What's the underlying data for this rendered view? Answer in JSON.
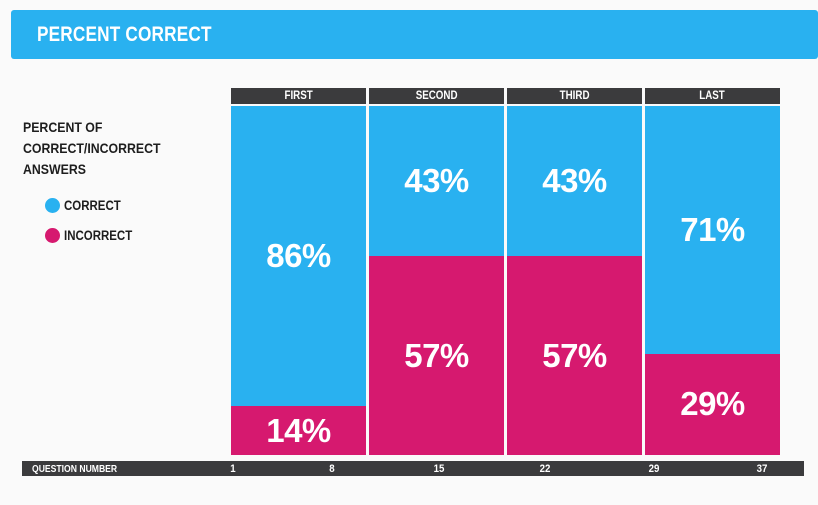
{
  "page": {
    "background": "#FAFAFA"
  },
  "header": {
    "title": "PERCENT CORRECT"
  },
  "legend": {
    "caption_lines": [
      "PERCENT OF",
      "CORRECT/INCORRECT",
      "ANSWERS"
    ]
  },
  "colors": {
    "accent_blue": "#29B1F0",
    "accent_pink": "#D6196F",
    "bar_dark": "#3B3B3D",
    "text_dark": "#1D1D1D",
    "text_light": "#FFFFFF",
    "page_bg": "#FAFAFA"
  },
  "chart_data": {
    "type": "bar",
    "subtype": "100%-stacked-columns",
    "title": "PERCENT CORRECT",
    "categories": [
      "FIRST",
      "SECOND",
      "THIRD",
      "LAST"
    ],
    "series": [
      {
        "name": "CORRECT",
        "color": "#29B1F0",
        "values": [
          86,
          43,
          43,
          71
        ]
      },
      {
        "name": "INCORRECT",
        "color": "#D6196F",
        "values": [
          14,
          57,
          57,
          29
        ]
      }
    ],
    "value_suffix": "%",
    "ylabel": "PERCENT OF CORRECT/INCORRECT ANSWERS",
    "xlabel": "QUESTION NUMBER",
    "x_ticks": [
      "1",
      "8",
      "15",
      "22",
      "29",
      "37"
    ],
    "ylim": [
      0,
      100
    ],
    "grid": false,
    "legend_position": "left"
  }
}
